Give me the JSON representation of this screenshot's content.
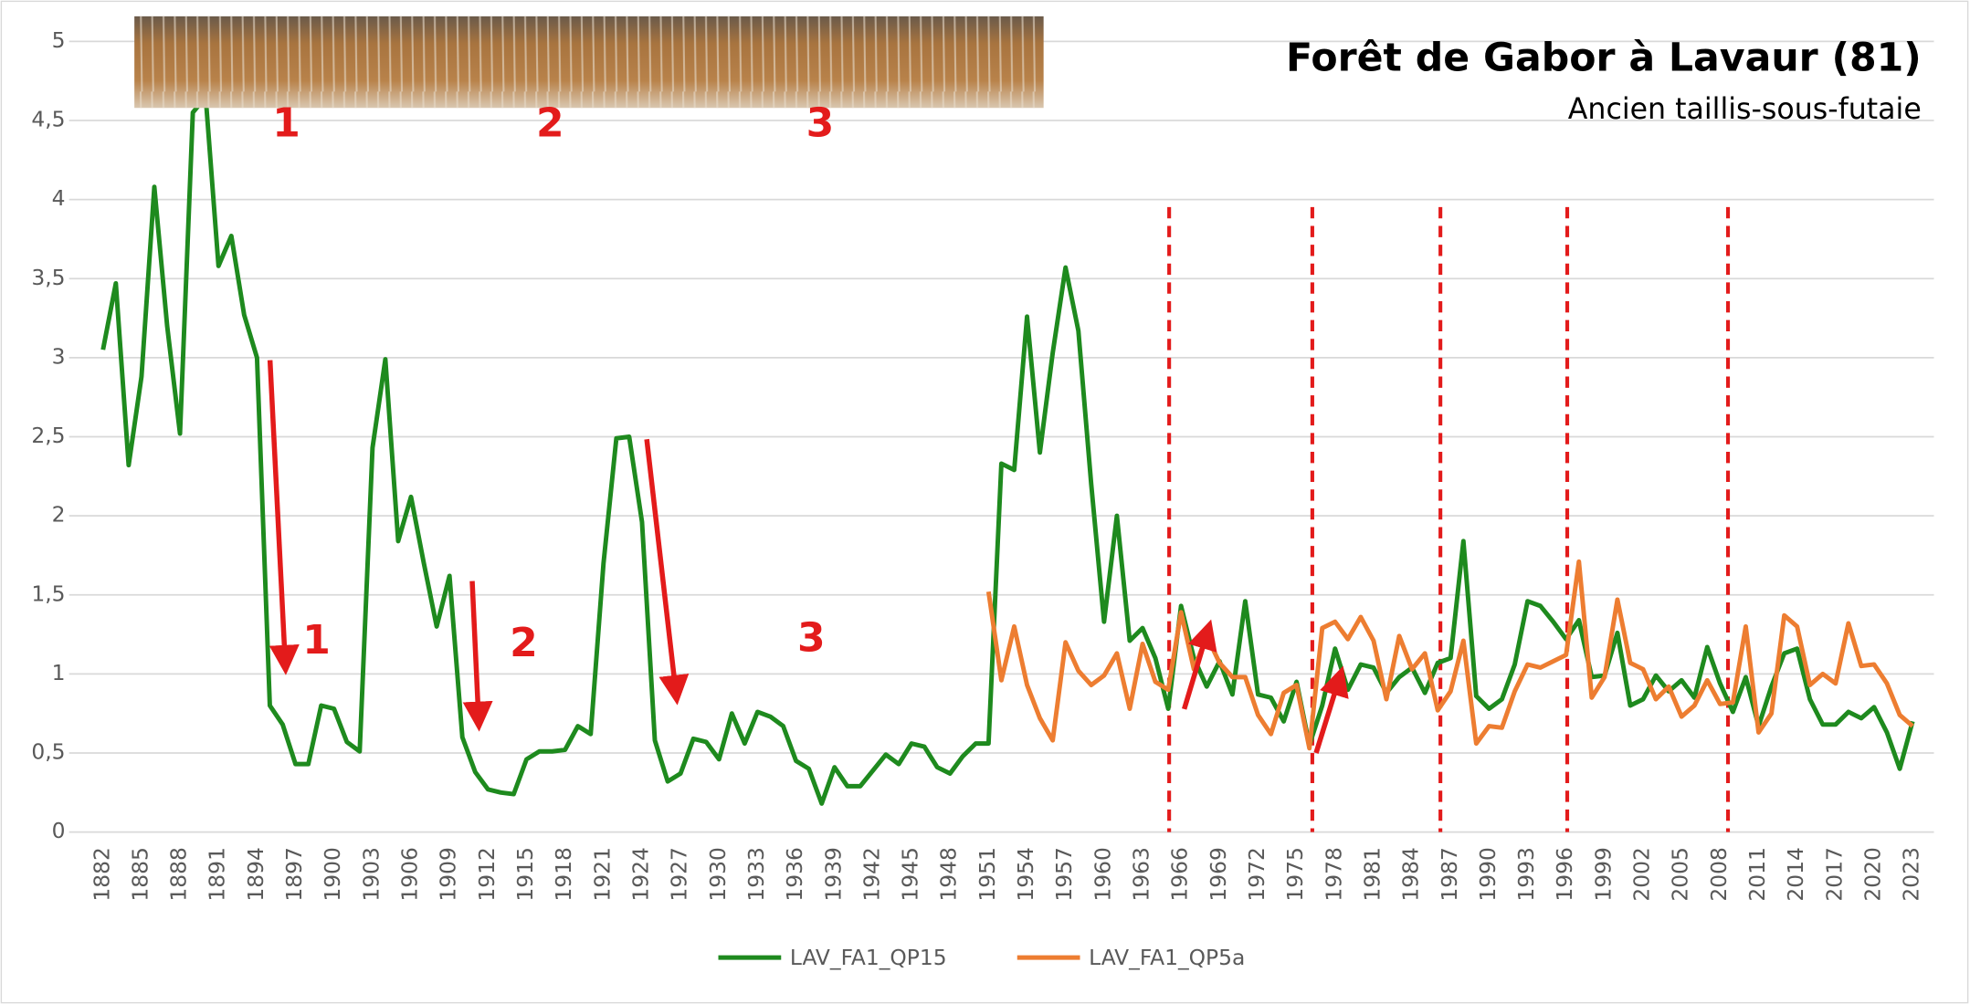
{
  "chart_data": {
    "type": "line",
    "title": "Forêt de Gabor à Lavaur (81)",
    "subtitle": "Ancien taillis-sous-futaie",
    "annotations": [
      "1",
      "2",
      "3",
      "1",
      "2",
      "3"
    ],
    "categories": [
      "1882",
      null,
      null,
      "1885",
      null,
      null,
      "1888",
      null,
      null,
      "1891",
      null,
      null,
      "1894",
      null,
      null,
      "1897",
      null,
      null,
      "1900",
      null,
      null,
      "1903",
      null,
      null,
      "1906",
      null,
      null,
      "1909",
      null,
      null,
      "1912",
      null,
      null,
      "1915",
      null,
      null,
      "1918",
      null,
      null,
      "1921",
      null,
      null,
      "1924",
      null,
      null,
      "1927",
      null,
      null,
      "1930",
      null,
      null,
      "1933",
      null,
      null,
      "1936",
      null,
      null,
      "1939",
      null,
      null,
      "1942",
      null,
      null,
      "1945",
      null,
      null,
      "1948",
      null,
      null,
      "1951",
      null,
      null,
      "1954",
      null,
      null,
      "1957",
      null,
      null,
      "1960",
      null,
      null,
      "1963",
      null,
      null,
      "1966",
      null,
      null,
      "1969",
      null,
      null,
      "1972",
      null,
      null,
      "1975",
      null,
      null,
      "1978",
      null,
      null,
      "1981",
      null,
      null,
      "1984",
      null,
      null,
      "1987",
      null,
      null,
      "1990",
      null,
      null,
      "1993",
      null,
      null,
      "1996",
      null,
      null,
      "1999",
      null,
      null,
      "2002",
      null,
      null,
      "2005",
      null,
      null,
      "2008",
      null,
      null,
      "2011",
      null,
      null,
      "2014",
      null,
      null,
      "2017",
      null,
      null,
      "2020",
      null,
      null,
      "2023"
    ],
    "series": [
      {
        "name": "LAV_FA1_QP15",
        "color": "#1e8a1e",
        "values": [
          3.05,
          3.47,
          2.32,
          2.88,
          4.08,
          3.2,
          2.52,
          4.55,
          4.65,
          3.58,
          3.77,
          3.27,
          3.0,
          0.8,
          0.68,
          0.43,
          0.43,
          0.8,
          0.78,
          0.57,
          0.51,
          2.43,
          2.99,
          1.84,
          2.12,
          1.7,
          1.3,
          1.62,
          0.6,
          0.38,
          0.27,
          0.25,
          0.24,
          0.46,
          0.51,
          0.51,
          0.52,
          0.67,
          0.62,
          1.7,
          2.49,
          2.5,
          1.96,
          0.58,
          0.32,
          0.37,
          0.59,
          0.57,
          0.46,
          0.75,
          0.56,
          0.76,
          0.73,
          0.67,
          0.45,
          0.4,
          0.18,
          0.41,
          0.29,
          0.29,
          0.39,
          0.49,
          0.43,
          0.56,
          0.54,
          0.41,
          0.37,
          0.48,
          0.56,
          0.56,
          2.33,
          2.29,
          3.26,
          2.4,
          3.03,
          3.57,
          3.17,
          2.2,
          1.33,
          2.0,
          1.21,
          1.29,
          1.1,
          0.78,
          1.43,
          1.1,
          0.92,
          1.08,
          0.87,
          1.46,
          0.87,
          0.85,
          0.7,
          0.95,
          0.55,
          0.8,
          1.16,
          0.9,
          1.06,
          1.04,
          0.88,
          0.98,
          1.04,
          0.88,
          1.07,
          1.1,
          1.84,
          0.86,
          0.78,
          0.84,
          1.06,
          1.46,
          1.43,
          1.33,
          1.22,
          1.34,
          0.98,
          0.99,
          1.26,
          0.8,
          0.84,
          0.99,
          0.89,
          0.96,
          0.85,
          1.17,
          0.94,
          0.76,
          0.98,
          0.67,
          0.92,
          1.13,
          1.16,
          0.84,
          0.68,
          0.68,
          0.76,
          0.72,
          0.79,
          0.63,
          0.4,
          0.7
        ]
      },
      {
        "name": "LAV_FA1_QP5a",
        "color": "#ed7d31",
        "values": [
          null,
          null,
          null,
          null,
          null,
          null,
          null,
          null,
          null,
          null,
          null,
          null,
          null,
          null,
          null,
          null,
          null,
          null,
          null,
          null,
          null,
          null,
          null,
          null,
          null,
          null,
          null,
          null,
          null,
          null,
          null,
          null,
          null,
          null,
          null,
          null,
          null,
          null,
          null,
          null,
          null,
          null,
          null,
          null,
          null,
          null,
          null,
          null,
          null,
          null,
          null,
          null,
          null,
          null,
          null,
          null,
          null,
          null,
          null,
          null,
          null,
          null,
          null,
          null,
          null,
          null,
          null,
          null,
          null,
          1.52,
          0.96,
          1.3,
          0.93,
          0.72,
          0.58,
          1.2,
          1.02,
          0.93,
          0.99,
          1.13,
          0.78,
          1.19,
          0.95,
          0.9,
          1.39,
          1.03,
          1.24,
          1.07,
          0.98,
          0.98,
          0.74,
          0.62,
          0.88,
          0.93,
          0.53,
          1.29,
          1.33,
          1.22,
          1.36,
          1.21,
          0.84,
          1.24,
          1.03,
          1.13,
          0.77,
          0.89,
          1.21,
          0.56,
          0.67,
          0.66,
          0.89,
          1.06,
          1.04,
          1.08,
          1.12,
          1.71,
          0.85,
          0.98,
          1.47,
          1.07,
          1.03,
          0.84,
          0.92,
          0.73,
          0.8,
          0.96,
          0.81,
          0.82,
          1.3,
          0.63,
          0.75,
          1.37,
          1.3,
          0.93,
          1.0,
          0.94,
          1.32,
          1.05,
          1.06,
          0.94,
          0.74,
          0.67
        ]
      }
    ],
    "ylim": [
      0,
      5
    ],
    "yticks": [
      0,
      {
        "value": 0.5,
        "label": "0,5"
      },
      1,
      {
        "value": 1.5,
        "label": "1,5"
      },
      2,
      {
        "value": 2.5,
        "label": "2,5"
      },
      3,
      {
        "value": 3.5,
        "label": "3,5"
      },
      4,
      {
        "value": 4.5,
        "label": "4,5"
      },
      5
    ],
    "grid": true,
    "legend": "bottom"
  }
}
